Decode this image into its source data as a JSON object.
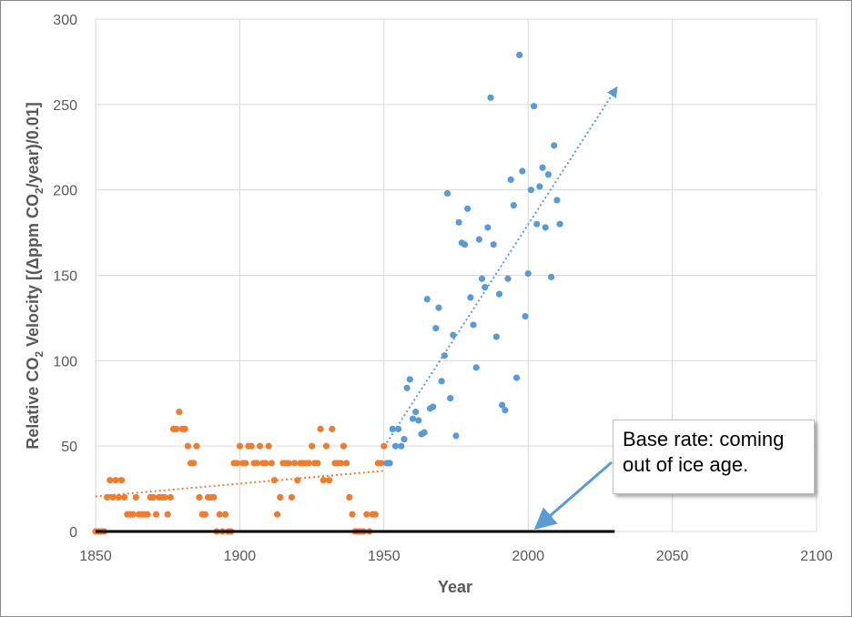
{
  "chart_data": {
    "type": "scatter",
    "xlabel": "Year",
    "ylabel_parts": [
      "Relative CO",
      "2",
      " Velocity [(Δppm CO",
      "2",
      "/year)/0.01]"
    ],
    "xlim": [
      1850,
      2100
    ],
    "ylim": [
      0,
      300
    ],
    "xticks": [
      "1850",
      "1900",
      "1950",
      "2000",
      "2050",
      "2100"
    ],
    "yticks": [
      "0",
      "50",
      "100",
      "150",
      "200",
      "250",
      "300"
    ],
    "grid": true,
    "colors": {
      "pre1950": "#ed7d31",
      "post1950": "#5b9bd5",
      "baseline": "#000000",
      "arrow": "#5b9bd5"
    },
    "series": [
      {
        "color_key": "pre1950",
        "points": [
          [
            1850,
            0
          ],
          [
            1851,
            0
          ],
          [
            1852,
            0
          ],
          [
            1853,
            0
          ],
          [
            1854,
            20
          ],
          [
            1855,
            30
          ],
          [
            1856,
            20
          ],
          [
            1857,
            30
          ],
          [
            1858,
            20
          ],
          [
            1859,
            30
          ],
          [
            1860,
            20
          ],
          [
            1861,
            10
          ],
          [
            1862,
            10
          ],
          [
            1863,
            10
          ],
          [
            1864,
            20
          ],
          [
            1865,
            10
          ],
          [
            1866,
            10
          ],
          [
            1867,
            10
          ],
          [
            1868,
            10
          ],
          [
            1869,
            20
          ],
          [
            1870,
            20
          ],
          [
            1871,
            10
          ],
          [
            1872,
            20
          ],
          [
            1873,
            20
          ],
          [
            1874,
            20
          ],
          [
            1875,
            10
          ],
          [
            1876,
            20
          ],
          [
            1877,
            60
          ],
          [
            1878,
            60
          ],
          [
            1879,
            70
          ],
          [
            1880,
            60
          ],
          [
            1881,
            60
          ],
          [
            1882,
            50
          ],
          [
            1883,
            40
          ],
          [
            1884,
            40
          ],
          [
            1885,
            50
          ],
          [
            1886,
            20
          ],
          [
            1887,
            10
          ],
          [
            1888,
            10
          ],
          [
            1889,
            20
          ],
          [
            1890,
            20
          ],
          [
            1891,
            20
          ],
          [
            1892,
            0
          ],
          [
            1893,
            10
          ],
          [
            1894,
            0
          ],
          [
            1895,
            10
          ],
          [
            1896,
            0
          ],
          [
            1897,
            0
          ],
          [
            1898,
            40
          ],
          [
            1899,
            40
          ],
          [
            1900,
            50
          ],
          [
            1901,
            40
          ],
          [
            1902,
            40
          ],
          [
            1903,
            50
          ],
          [
            1904,
            50
          ],
          [
            1905,
            40
          ],
          [
            1906,
            40
          ],
          [
            1907,
            50
          ],
          [
            1908,
            40
          ],
          [
            1909,
            40
          ],
          [
            1910,
            50
          ],
          [
            1911,
            40
          ],
          [
            1912,
            30
          ],
          [
            1913,
            10
          ],
          [
            1914,
            20
          ],
          [
            1915,
            40
          ],
          [
            1916,
            40
          ],
          [
            1917,
            40
          ],
          [
            1918,
            20
          ],
          [
            1919,
            40
          ],
          [
            1920,
            30
          ],
          [
            1921,
            40
          ],
          [
            1922,
            40
          ],
          [
            1923,
            40
          ],
          [
            1924,
            40
          ],
          [
            1925,
            50
          ],
          [
            1926,
            40
          ],
          [
            1927,
            40
          ],
          [
            1928,
            60
          ],
          [
            1929,
            30
          ],
          [
            1930,
            50
          ],
          [
            1931,
            30
          ],
          [
            1932,
            60
          ],
          [
            1933,
            40
          ],
          [
            1934,
            40
          ],
          [
            1935,
            40
          ],
          [
            1936,
            50
          ],
          [
            1937,
            40
          ],
          [
            1938,
            20
          ],
          [
            1939,
            10
          ],
          [
            1940,
            0
          ],
          [
            1941,
            0
          ],
          [
            1942,
            0
          ],
          [
            1943,
            0
          ],
          [
            1944,
            10
          ],
          [
            1945,
            0
          ],
          [
            1946,
            10
          ],
          [
            1947,
            10
          ],
          [
            1948,
            40
          ],
          [
            1949,
            40
          ],
          [
            1950,
            50
          ]
        ]
      },
      {
        "color_key": "post1950",
        "points": [
          [
            1951,
            40
          ],
          [
            1952,
            40
          ],
          [
            1953,
            60
          ],
          [
            1954,
            50
          ],
          [
            1955,
            60
          ],
          [
            1956,
            50
          ],
          [
            1957,
            54
          ],
          [
            1958,
            84
          ],
          [
            1959,
            89
          ],
          [
            1960,
            66
          ],
          [
            1961,
            70
          ],
          [
            1962,
            65
          ],
          [
            1963,
            57
          ],
          [
            1964,
            58
          ],
          [
            1965,
            136
          ],
          [
            1966,
            72
          ],
          [
            1967,
            73
          ],
          [
            1968,
            119
          ],
          [
            1969,
            131
          ],
          [
            1970,
            88
          ],
          [
            1971,
            103
          ],
          [
            1972,
            198
          ],
          [
            1973,
            78
          ],
          [
            1974,
            115
          ],
          [
            1975,
            56
          ],
          [
            1976,
            181
          ],
          [
            1977,
            169
          ],
          [
            1978,
            168
          ],
          [
            1979,
            189
          ],
          [
            1980,
            137
          ],
          [
            1981,
            121
          ],
          [
            1982,
            96
          ],
          [
            1983,
            171
          ],
          [
            1984,
            148
          ],
          [
            1985,
            143
          ],
          [
            1986,
            178
          ],
          [
            1987,
            254
          ],
          [
            1988,
            168
          ],
          [
            1989,
            114
          ],
          [
            1990,
            139
          ],
          [
            1991,
            74
          ],
          [
            1992,
            71
          ],
          [
            1993,
            148
          ],
          [
            1994,
            206
          ],
          [
            1995,
            191
          ],
          [
            1996,
            90
          ],
          [
            1997,
            279
          ],
          [
            1998,
            211
          ],
          [
            1999,
            126
          ],
          [
            2000,
            151
          ],
          [
            2001,
            200
          ],
          [
            2002,
            249
          ],
          [
            2003,
            180
          ],
          [
            2004,
            202
          ],
          [
            2005,
            213
          ],
          [
            2006,
            178
          ],
          [
            2007,
            209
          ],
          [
            2008,
            149
          ],
          [
            2009,
            226
          ],
          [
            2010,
            194
          ],
          [
            2011,
            180
          ]
        ]
      }
    ],
    "trendlines": [
      {
        "color_key": "pre1950",
        "from": [
          1850,
          20.5
        ],
        "to": [
          1950,
          35.5
        ]
      },
      {
        "color_key": "post1950",
        "from": [
          1951,
          52
        ],
        "to": [
          2030,
          258
        ]
      }
    ],
    "baseline": {
      "from": [
        1850,
        0
      ],
      "to": [
        2030,
        0
      ]
    },
    "annotation": {
      "text_line1": "Base rate: coming",
      "text_line2": "out of ice age.",
      "arrow_tip": [
        2003,
        2
      ]
    }
  }
}
